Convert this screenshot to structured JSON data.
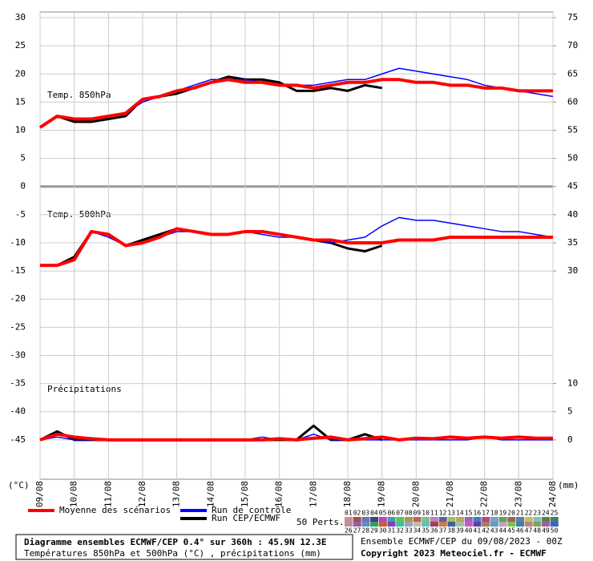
{
  "chart_data": {
    "type": "line",
    "panel_labels": [
      "Temp. 850hPa",
      "Temp. 500hPa",
      "Précipitations"
    ],
    "ylabel": "(°C)",
    "y2label": "(mm)",
    "xlim": [
      0,
      15
    ],
    "xticks": [
      {
        "value": 0,
        "label": "09/08"
      },
      {
        "value": 1,
        "label": "10/08"
      },
      {
        "value": 2,
        "label": "11/08"
      },
      {
        "value": 3,
        "label": "12/08"
      },
      {
        "value": 4,
        "label": "13/08"
      },
      {
        "value": 5,
        "label": "14/08"
      },
      {
        "value": 6,
        "label": "15/08"
      },
      {
        "value": 7,
        "label": "16/08"
      },
      {
        "value": 8,
        "label": "17/08"
      },
      {
        "value": 9,
        "label": "18/08"
      },
      {
        "value": 10,
        "label": "19/08"
      },
      {
        "value": 11,
        "label": "20/08"
      },
      {
        "value": 12,
        "label": "21/08"
      },
      {
        "value": 13,
        "label": "22/08"
      },
      {
        "value": 14,
        "label": "23/08"
      },
      {
        "value": 15,
        "label": "24/08"
      }
    ],
    "ylim": [
      -52,
      31
    ],
    "yticks": [
      30,
      25,
      20,
      15,
      10,
      5,
      0,
      -5,
      -10,
      -15,
      -20,
      -25,
      -30,
      -35,
      -40,
      -45
    ],
    "y2lim": [
      -7,
      76
    ],
    "y2ticks": [
      75,
      70,
      65,
      60,
      55,
      50,
      45,
      40,
      35,
      30,
      10,
      5,
      0
    ],
    "grid": true,
    "x": [
      0,
      0.5,
      1,
      1.5,
      2,
      2.5,
      3,
      3.5,
      4,
      4.5,
      5,
      5.5,
      6,
      6.5,
      7,
      7.5,
      8,
      8.5,
      9,
      9.5,
      10,
      10.5,
      11,
      11.5,
      12,
      12.5,
      13,
      13.5,
      14,
      14.5,
      15
    ],
    "series": [
      {
        "name": "Moyenne des scénarios",
        "color": "#ff0000",
        "width": 4,
        "values": [
          10.5,
          12.5,
          12,
          12,
          12.5,
          13,
          15.5,
          16,
          17,
          17.5,
          18.5,
          19,
          18.5,
          18.5,
          18,
          18,
          17.5,
          18,
          18.5,
          18.5,
          19,
          19,
          18.5,
          18.5,
          18,
          18,
          17.5,
          17.5,
          17,
          17,
          17
        ],
        "values_500": [
          -14,
          -14,
          -13,
          -8,
          -8.5,
          -10.5,
          -10,
          -9,
          -7.5,
          -8,
          -8.5,
          -8.5,
          -8,
          -8,
          -8.5,
          -9,
          -9.5,
          -9.5,
          -10,
          -10,
          -10,
          -9.5,
          -9.5,
          -9.5,
          -9,
          -9,
          -9,
          -9,
          -9,
          -9,
          -9
        ],
        "precipitation": [
          0,
          1,
          0.5,
          0.2,
          0,
          0,
          0,
          0,
          0,
          0,
          0,
          0,
          0,
          0,
          0.2,
          0,
          0.3,
          0.5,
          0,
          0.2,
          0.5,
          0,
          0.3,
          0.2,
          0.5,
          0.3,
          0.5,
          0.3,
          0.5,
          0.3,
          0.3
        ]
      },
      {
        "name": "Run de contrôle",
        "color": "#0000ff",
        "width": 1.5,
        "values": [
          10.5,
          12.5,
          12,
          12,
          12.5,
          13,
          15,
          16,
          17,
          18,
          19,
          19,
          19,
          18.5,
          18,
          18,
          18,
          18.5,
          19,
          19,
          20,
          21,
          20.5,
          20,
          19.5,
          19,
          18,
          17.5,
          17,
          16.5,
          16
        ],
        "values_500": [
          -14,
          -14,
          -13,
          -8,
          -9,
          -10.5,
          -10,
          -9,
          -8,
          -8,
          -8.5,
          -8.5,
          -8,
          -8.5,
          -9,
          -9,
          -9.5,
          -10,
          -9.5,
          -9,
          -7,
          -5.5,
          -6,
          -6,
          -6.5,
          -7,
          -7.5,
          -8,
          -8,
          -8.5,
          -9
        ],
        "precipitation": [
          0,
          0.5,
          0,
          0,
          0,
          0,
          0,
          0,
          0,
          0,
          0,
          0,
          0,
          0.5,
          0,
          0,
          1,
          0,
          0,
          0,
          0,
          0,
          0,
          0,
          0,
          0,
          0.5,
          0,
          0,
          0,
          0
        ]
      },
      {
        "name": "Run CEP/ECMWF",
        "color": "#000000",
        "width": 3,
        "values": [
          10.5,
          12.5,
          11.5,
          11.5,
          12,
          12.5,
          15.5,
          16,
          16.5,
          17.5,
          18.5,
          19.5,
          19,
          19,
          18.5,
          17,
          17,
          17.5,
          17,
          18,
          17.5,
          null,
          null,
          null,
          null,
          null,
          null,
          null,
          null,
          null,
          null
        ],
        "values_500": [
          -14,
          -14,
          -12.5,
          -8,
          -8.5,
          -10.5,
          -9.5,
          -8.5,
          -7.5,
          -8,
          -8.5,
          -8.5,
          -8,
          -8,
          -8.5,
          -9,
          -9.5,
          -10,
          -11,
          -11.5,
          -10.5,
          null,
          null,
          null,
          null,
          null,
          null,
          null,
          null,
          null,
          null
        ],
        "precipitation": [
          0,
          1.5,
          0,
          0,
          0,
          0,
          0,
          0,
          0,
          0,
          0,
          0,
          0,
          0,
          0,
          0,
          2.5,
          0,
          0,
          1,
          0,
          null,
          null,
          null,
          null,
          null,
          null,
          null,
          null,
          null,
          null
        ]
      }
    ],
    "perturbations_label": "50 Perts.",
    "perturbation_labels": [
      "01",
      "02",
      "03",
      "04",
      "05",
      "06",
      "07",
      "08",
      "09",
      "10",
      "11",
      "12",
      "13",
      "14",
      "15",
      "16",
      "17",
      "18",
      "19",
      "20",
      "21",
      "22",
      "23",
      "24",
      "25",
      "26",
      "27",
      "28",
      "29",
      "30",
      "31",
      "32",
      "33",
      "34",
      "35",
      "36",
      "37",
      "38",
      "39",
      "40",
      "41",
      "42",
      "43",
      "44",
      "45",
      "46",
      "47",
      "48",
      "49",
      "50"
    ],
    "perturbation_colors": [
      "#c89090",
      "#a05050",
      "#7070c0",
      "#404080",
      "#c040c0",
      "#40a0a0",
      "#60c060",
      "#a0a040",
      "#c06060",
      "#80c080",
      "#c080c0",
      "#6060a0",
      "#a0c060",
      "#c0a060",
      "#a060c0",
      "#4080c0",
      "#c04080",
      "#80a0c0",
      "#60a060",
      "#a06060",
      "#6080a0",
      "#c0c060",
      "#80c0c0",
      "#608040",
      "#408060",
      "#c090a0",
      "#9060a0",
      "#6090c0",
      "#30a060",
      "#c06030",
      "#8040c0",
      "#40c0a0",
      "#a0a0c0",
      "#c0c0a0",
      "#60c0c0",
      "#a04060",
      "#c08040",
      "#4060a0",
      "#a0c0a0",
      "#c060c0",
      "#6040a0",
      "#a08060",
      "#60a0c0",
      "#c0a0c0",
      "#80c040",
      "#4080a0",
      "#c08080",
      "#80a060",
      "#a060a0",
      "#4060c0"
    ],
    "title": "Diagramme ensembles ECMWF/CEP 0.4° sur 360h : 45.9N 12.3E",
    "subtitle": "Températures 850hPa et 500hPa (°C) , précipitations (mm)",
    "run_label": "Ensemble ECMWF/CEP du 09/08/2023 - 00Z",
    "copyright": "Copyright 2023 Meteociel.fr - ECMWF"
  }
}
